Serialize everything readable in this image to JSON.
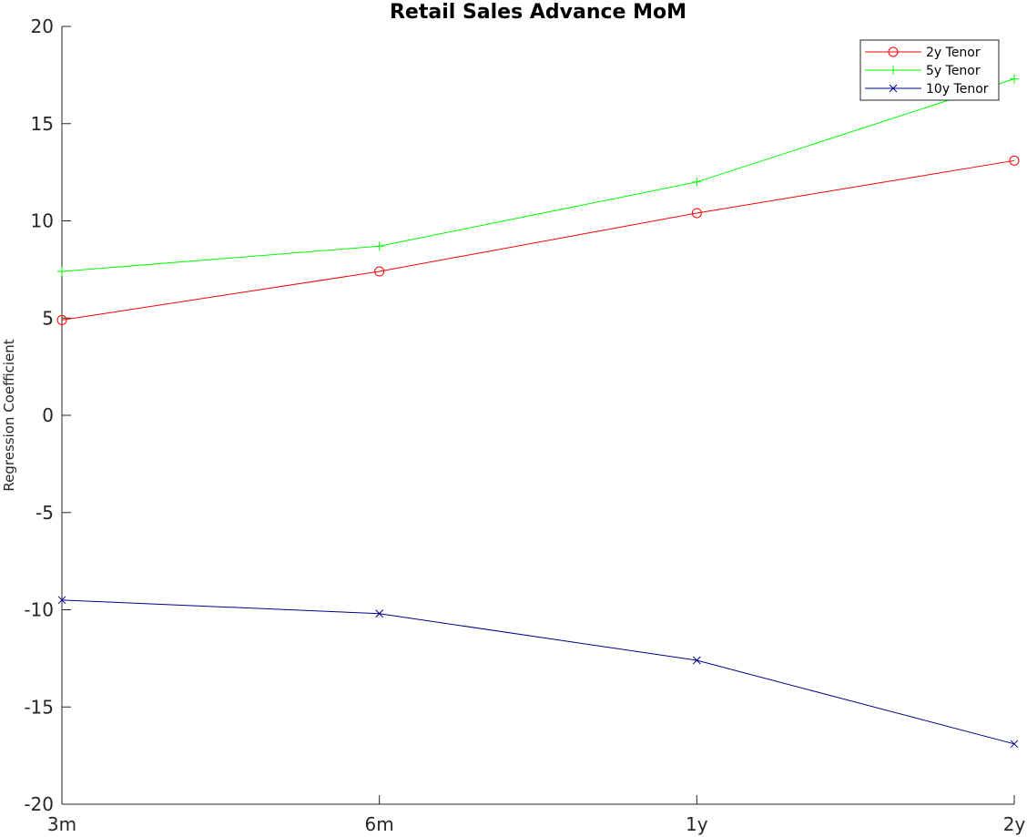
{
  "chart_data": {
    "type": "line",
    "title": "Retail Sales Advance MoM",
    "xlabel": "",
    "ylabel": "Regression Coefficient",
    "categories": [
      "3m",
      "6m",
      "1y",
      "2y"
    ],
    "ylim": [
      -20,
      20
    ],
    "yticks": [
      -20,
      -15,
      -10,
      -5,
      0,
      5,
      10,
      15,
      20
    ],
    "grid": false,
    "legend_position": "top-right",
    "series": [
      {
        "name": "2y Tenor",
        "color": "#ff0000",
        "marker": "circle",
        "values": [
          4.9,
          7.4,
          10.4,
          13.1
        ]
      },
      {
        "name": "5y Tenor",
        "color": "#00ff00",
        "marker": "plus",
        "values": [
          7.4,
          8.7,
          12.0,
          17.3
        ]
      },
      {
        "name": "10y Tenor",
        "color": "#00008b",
        "marker": "x",
        "values": [
          -9.5,
          -10.2,
          -12.6,
          -16.9
        ]
      }
    ]
  }
}
